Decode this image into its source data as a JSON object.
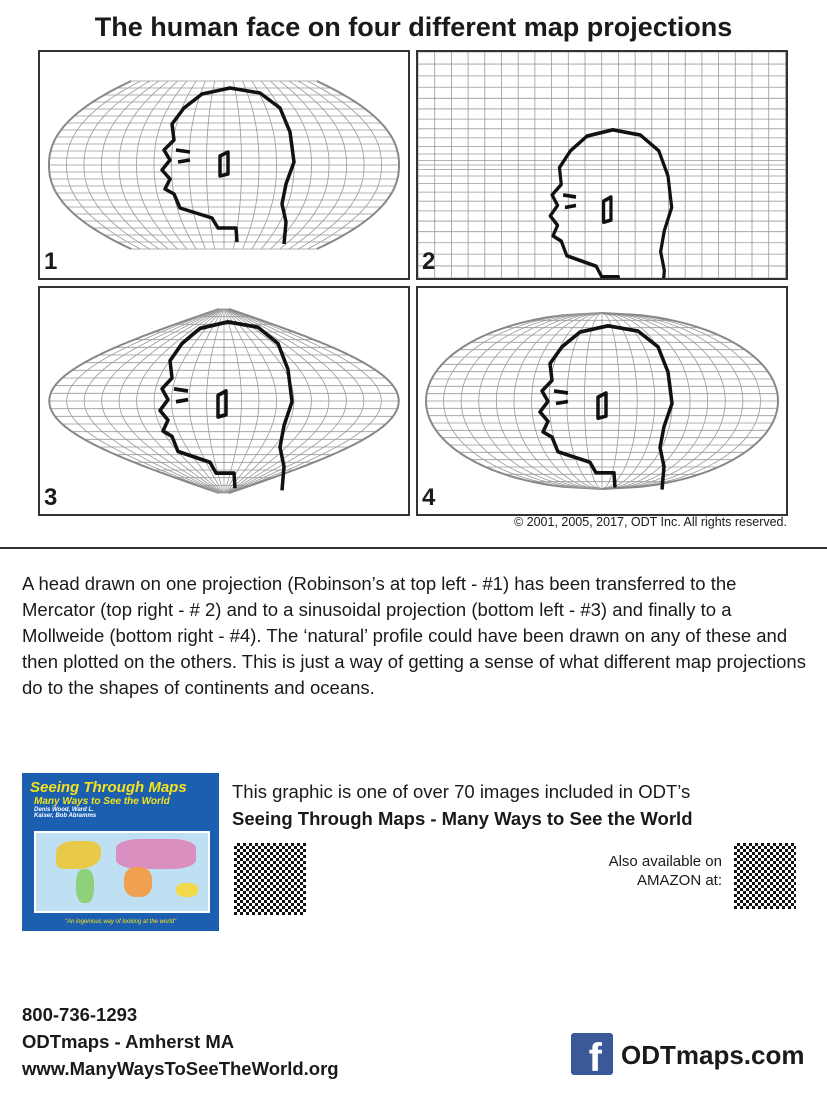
{
  "title": "The human face on four different map projections",
  "panels": [
    {
      "number": "1",
      "projection": "robinson"
    },
    {
      "number": "2",
      "projection": "mercator"
    },
    {
      "number": "3",
      "projection": "sinusoidal"
    },
    {
      "number": "4",
      "projection": "mollweide"
    }
  ],
  "copyright": "© 2001, 2005, 2017, ODT Inc. All rights reserved.",
  "description": "A head drawn on one projection (Robinson’s at top left - #1) has been transferred to the Mercator (top right - # 2) and to a sinusoidal projection (bottom left - #3) and finally to a Mollweide (bottom right - #4). The ‘natural’ profile could have been drawn on any of these and then plotted on the others. This is just a way of getting a sense of what different map projections do to the shapes of continents and oceans.",
  "book": {
    "cover_title": "Seeing Through Maps",
    "cover_subtitle": "Many Ways to See the World",
    "cover_authors": "Denis Wood, Ward L. Kaiser, Bob Abramms",
    "cover_quote": "\"An ingenious way of looking at the world\""
  },
  "promo": {
    "line1": "This graphic is one of over 70 images included in ODT’s",
    "line2": "Seeing Through Maps - Many Ways to See the World",
    "amazon": "Also available on AMAZON at:"
  },
  "contact": {
    "phone": "800-736-1293",
    "org": "ODTmaps - Amherst MA",
    "website": "www.ManyWaysToSeeTheWorld.org"
  },
  "social": {
    "icon": "facebook-icon",
    "label": "ODTmaps.com",
    "color": "#3b5998"
  }
}
